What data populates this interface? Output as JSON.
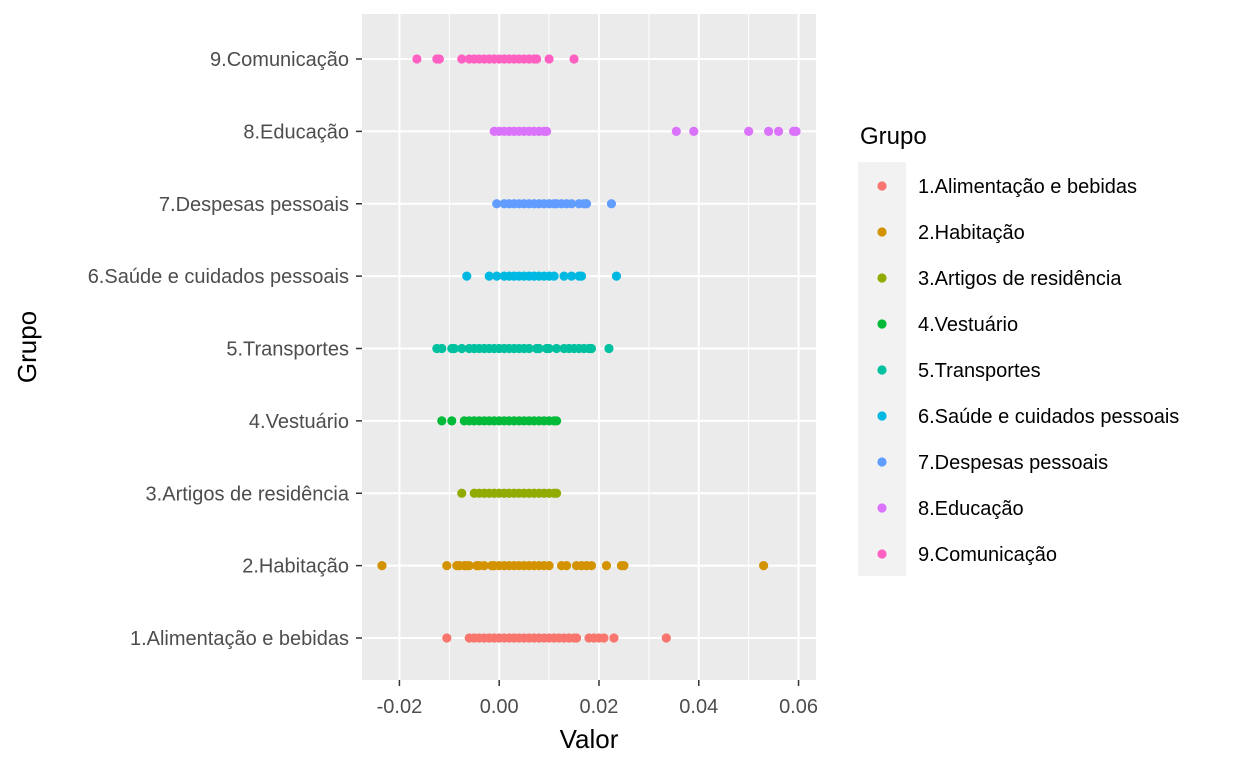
{
  "chart_data": {
    "type": "scatter",
    "title": "",
    "xlabel": "Valor",
    "ylabel": "Grupo",
    "xlim": [
      -0.0275,
      0.0635
    ],
    "x_ticks": [
      -0.02,
      0.0,
      0.02,
      0.04,
      0.06
    ],
    "x_tick_labels": [
      "-0.02",
      "0.00",
      "0.02",
      "0.04",
      "0.06"
    ],
    "grid": true,
    "legend": {
      "title": "Grupo",
      "position": "right"
    },
    "categories": [
      "1.Alimentação e bebidas",
      "2.Habitação",
      "3.Artigos de residência",
      "4.Vestuário",
      "5.Transportes",
      "6.Saúde e cuidados pessoais",
      "7.Despesas pessoais",
      "8.Educação",
      "9.Comunicação"
    ],
    "series": [
      {
        "name": "1.Alimentação e bebidas",
        "color": "#F8766D",
        "values": [
          -0.0105,
          -0.006,
          -0.005,
          -0.004,
          -0.003,
          -0.002,
          -0.001,
          0.0,
          0.001,
          0.002,
          0.003,
          0.004,
          0.005,
          0.006,
          0.007,
          0.008,
          0.009,
          0.01,
          0.011,
          0.012,
          0.013,
          0.014,
          0.015,
          0.0155,
          0.018,
          0.019,
          0.02,
          0.021,
          0.023,
          0.0335
        ]
      },
      {
        "name": "2.Habitação",
        "color": "#D39200",
        "values": [
          -0.0235,
          -0.0105,
          -0.0085,
          -0.008,
          -0.007,
          -0.0065,
          -0.006,
          -0.0045,
          -0.004,
          -0.003,
          -0.0015,
          -0.001,
          0.0,
          0.001,
          0.002,
          0.003,
          0.004,
          0.005,
          0.006,
          0.007,
          0.008,
          0.009,
          0.01,
          0.0125,
          0.0135,
          0.0155,
          0.0165,
          0.0175,
          0.0185,
          0.0215,
          0.0245,
          0.025,
          0.053
        ]
      },
      {
        "name": "3.Artigos de residência",
        "color": "#93AA00",
        "values": [
          -0.0075,
          -0.005,
          -0.004,
          -0.003,
          -0.002,
          -0.001,
          0.0,
          0.001,
          0.002,
          0.003,
          0.004,
          0.005,
          0.006,
          0.007,
          0.008,
          0.009,
          0.01,
          0.011,
          0.0115
        ]
      },
      {
        "name": "4.Vestuário",
        "color": "#00BA38",
        "values": [
          -0.0115,
          -0.0095,
          -0.007,
          -0.006,
          -0.005,
          -0.004,
          -0.003,
          -0.002,
          -0.001,
          0.0,
          0.001,
          0.002,
          0.003,
          0.004,
          0.005,
          0.006,
          0.007,
          0.008,
          0.009,
          0.01,
          0.011,
          0.0115
        ]
      },
      {
        "name": "5.Transportes",
        "color": "#00C19F",
        "values": [
          -0.0125,
          -0.0115,
          -0.0095,
          -0.009,
          -0.0075,
          -0.006,
          -0.005,
          -0.004,
          -0.003,
          -0.002,
          -0.001,
          0.0,
          0.001,
          0.002,
          0.003,
          0.004,
          0.005,
          0.006,
          0.0075,
          0.008,
          0.0095,
          0.01,
          0.0115,
          0.013,
          0.014,
          0.015,
          0.016,
          0.017,
          0.018,
          0.0185,
          0.022
        ]
      },
      {
        "name": "6.Saúde e cuidados pessoais",
        "color": "#00B9E3",
        "values": [
          -0.0065,
          -0.002,
          -0.0005,
          0.001,
          0.002,
          0.003,
          0.004,
          0.005,
          0.006,
          0.007,
          0.008,
          0.009,
          0.01,
          0.011,
          0.013,
          0.0145,
          0.016,
          0.0165,
          0.0235
        ]
      },
      {
        "name": "7.Despesas pessoais",
        "color": "#619CFF",
        "values": [
          -0.0005,
          0.001,
          0.002,
          0.003,
          0.004,
          0.005,
          0.006,
          0.007,
          0.008,
          0.009,
          0.01,
          0.011,
          0.0115,
          0.0125,
          0.0135,
          0.0145,
          0.016,
          0.017,
          0.0175,
          0.0225
        ]
      },
      {
        "name": "8.Educação",
        "color": "#DB72FB",
        "values": [
          -0.001,
          0.0,
          0.001,
          0.002,
          0.003,
          0.004,
          0.005,
          0.006,
          0.007,
          0.008,
          0.009,
          0.0095,
          0.0355,
          0.039,
          0.05,
          0.054,
          0.056,
          0.059,
          0.0595
        ]
      },
      {
        "name": "9.Comunicação",
        "color": "#FF61C3",
        "values": [
          -0.0165,
          -0.0125,
          -0.012,
          -0.0075,
          -0.006,
          -0.005,
          -0.004,
          -0.003,
          -0.002,
          -0.001,
          0.0,
          0.001,
          0.002,
          0.003,
          0.004,
          0.005,
          0.006,
          0.007,
          0.0075,
          0.01,
          0.015
        ]
      }
    ]
  }
}
